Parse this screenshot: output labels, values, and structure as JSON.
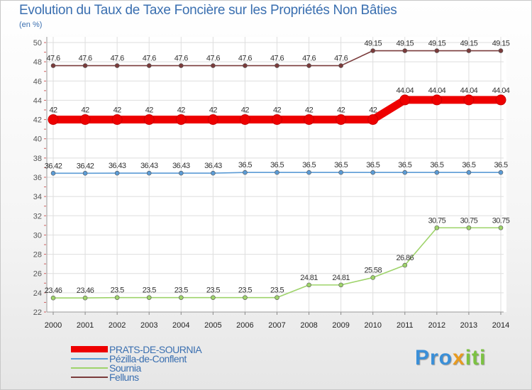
{
  "chart_data": {
    "type": "line",
    "title": "Evolution du Taux de Taxe Foncière sur les Propriétés Non Bâties",
    "ylabel": "(en %)",
    "xlabel": "",
    "ylim": [
      22,
      50
    ],
    "yticks": [
      22,
      24,
      26,
      28,
      30,
      32,
      34,
      36,
      38,
      40,
      42,
      44,
      46,
      48,
      50
    ],
    "categories": [
      "2000",
      "2001",
      "2002",
      "2003",
      "2004",
      "2005",
      "2006",
      "2007",
      "2008",
      "2009",
      "2010",
      "2011",
      "2012",
      "2013",
      "2014"
    ],
    "series": [
      {
        "name": "PRATS-DE-SOURNIA",
        "color": "#ee0000",
        "emphasis": true,
        "values": [
          42,
          42,
          42,
          42,
          42,
          42,
          42,
          42,
          42,
          42,
          42,
          44.04,
          44.04,
          44.04,
          44.04
        ],
        "labels": [
          "42",
          "42",
          "42",
          "42",
          "42",
          "42",
          "42",
          "42",
          "42",
          "42",
          "42",
          "44.04",
          "44.04",
          "44.04",
          "44.04"
        ]
      },
      {
        "name": "Pézilla-de-Conflent",
        "color": "#5b9bd5",
        "emphasis": false,
        "values": [
          36.42,
          36.42,
          36.43,
          36.43,
          36.43,
          36.43,
          36.5,
          36.5,
          36.5,
          36.5,
          36.5,
          36.5,
          36.5,
          36.5,
          36.5
        ],
        "labels": [
          "36.42",
          "36.42",
          "36.43",
          "36.43",
          "36.43",
          "36.43",
          "36.5",
          "36.5",
          "36.5",
          "36.5",
          "36.5",
          "36.5",
          "36.5",
          "36.5",
          "36.5"
        ]
      },
      {
        "name": "Sournia",
        "color": "#9ed36a",
        "emphasis": false,
        "values": [
          23.46,
          23.46,
          23.5,
          23.5,
          23.5,
          23.5,
          23.5,
          23.5,
          24.81,
          24.81,
          25.58,
          26.86,
          30.75,
          30.75,
          30.75
        ],
        "labels": [
          "23.46",
          "23.46",
          "23.5",
          "23.5",
          "23.5",
          "23.5",
          "23.5",
          "23.5",
          "24.81",
          "24.81",
          "25.58",
          "26.86",
          "30.75",
          "30.75",
          "30.75"
        ]
      },
      {
        "name": "Felluns",
        "color": "#7a3b3b",
        "emphasis": false,
        "values": [
          47.6,
          47.6,
          47.6,
          47.6,
          47.6,
          47.6,
          47.6,
          47.6,
          47.6,
          47.6,
          49.15,
          49.15,
          49.15,
          49.15,
          49.15
        ],
        "labels": [
          "47.6",
          "47.6",
          "47.6",
          "47.6",
          "47.6",
          "47.6",
          "47.6",
          "47.6",
          "47.6",
          "47.6",
          "49.15",
          "49.15",
          "49.15",
          "49.15",
          "49.15"
        ]
      }
    ]
  },
  "logo": {
    "part1": "Pro",
    "part2": "x",
    "part3": "iti"
  }
}
